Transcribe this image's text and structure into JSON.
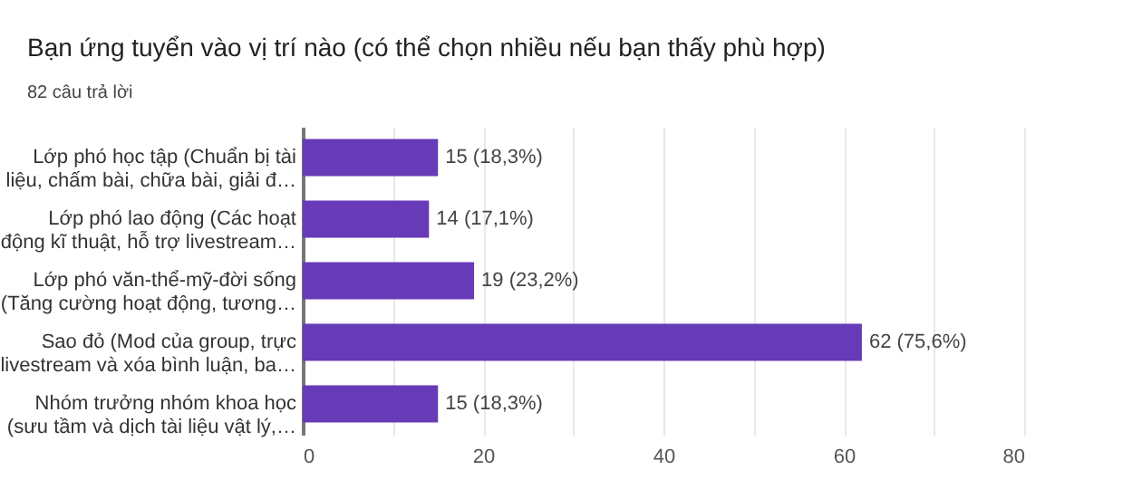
{
  "chart_data": {
    "type": "bar",
    "orientation": "horizontal",
    "title": "Bạn ứng tuyển vào vị trí nào (có thể chọn nhiều nếu bạn thấy phù hợp)",
    "subtitle": "82 câu trả lời",
    "categories": [
      "Lớp phó học tập (Chuẩn bị tài\nliệu, chấm bài, chữa bài, giải đ…",
      "Lớp phó lao động (Các hoạt\nđộng kĩ thuật, hỗ trợ livestream…",
      "Lớp phó văn-thể-mỹ-đời sống\n(Tăng cường hoạt động, tương…",
      "Sao đỏ (Mod của group, trực\nlivestream và xóa bình luận, ba…",
      "Nhóm trưởng nhóm khoa học\n(sưu tầm và dịch tài liệu vật lý,…"
    ],
    "values": [
      15,
      14,
      19,
      62,
      15
    ],
    "value_labels": [
      "15 (18,3%)",
      "14 (17,1%)",
      "19 (23,2%)",
      "62 (75,6%)",
      "15 (18,3%)"
    ],
    "color": "#673ab7",
    "xlim": [
      0,
      80
    ],
    "xticks": [
      0,
      {
        "value": 10,
        "label": null
      },
      20,
      {
        "value": 30,
        "label": null
      },
      40,
      {
        "value": 50,
        "label": null
      },
      60,
      {
        "value": 70,
        "label": null
      },
      80
    ],
    "grid": "x"
  }
}
